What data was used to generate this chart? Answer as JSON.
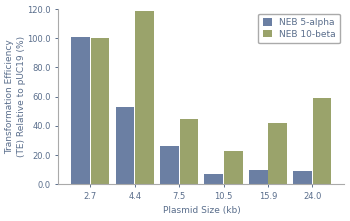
{
  "categories": [
    "2.7",
    "4.4",
    "7.5",
    "10.5",
    "15.9",
    "24.0"
  ],
  "neb5alpha": [
    101,
    53,
    26,
    7,
    10,
    9
  ],
  "neb10beta": [
    100,
    119,
    45,
    23,
    42,
    59
  ],
  "color_5alpha": "#6b7fa3",
  "color_10beta": "#9aA36b",
  "xlabel": "Plasmid Size (kb)",
  "ylabel": "Transformation Efficiency\n(TE) Relative to pUC19 (%)",
  "ylim": [
    0,
    120
  ],
  "yticks": [
    0,
    20.0,
    40.0,
    60.0,
    80.0,
    100.0,
    120.0
  ],
  "legend_labels": [
    "NEB 5-alpha",
    "NEB 10-beta"
  ],
  "bar_width": 0.42,
  "axis_fontsize": 6.5,
  "tick_fontsize": 6.0,
  "legend_fontsize": 6.5,
  "spine_color": "#aaaaaa",
  "text_color": "#5a6e8c",
  "bar_gap": 0.02,
  "fig_bg": "#f5f5f0"
}
